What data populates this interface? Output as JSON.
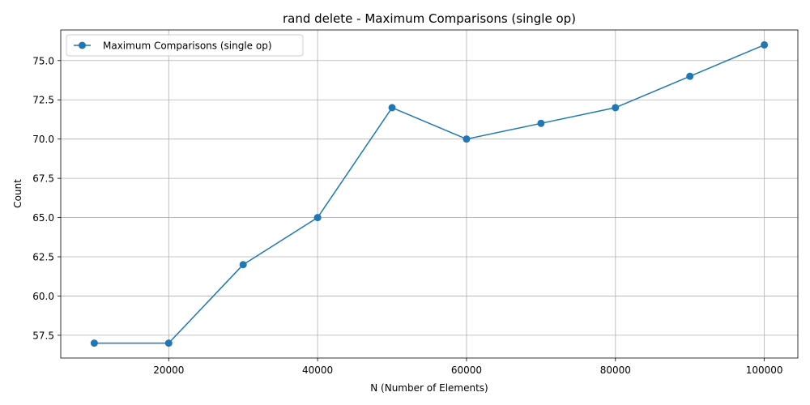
{
  "chart_data": {
    "type": "line",
    "title": "rand delete - Maximum Comparisons (single op)",
    "xlabel": "N (Number of Elements)",
    "ylabel": "Count",
    "xlim": [
      5500,
      104500
    ],
    "ylim": [
      56.05,
      76.95
    ],
    "xticks": [
      20000,
      40000,
      60000,
      80000,
      100000
    ],
    "xtick_labels": [
      "20000",
      "40000",
      "60000",
      "80000",
      "100000"
    ],
    "yticks": [
      57.5,
      60.0,
      62.5,
      65.0,
      67.5,
      70.0,
      72.5,
      75.0
    ],
    "ytick_labels": [
      "57.5",
      "60.0",
      "62.5",
      "65.0",
      "67.5",
      "70.0",
      "72.5",
      "75.0"
    ],
    "grid": true,
    "legend_position": "top-left",
    "series": [
      {
        "name": "Maximum Comparisons (single op)",
        "color": "#1f77b4",
        "marker": "circle",
        "x": [
          10000,
          20000,
          30000,
          40000,
          50000,
          60000,
          70000,
          80000,
          90000,
          100000
        ],
        "y": [
          57,
          57,
          62,
          65,
          72,
          70,
          71,
          72,
          74,
          76
        ]
      }
    ]
  }
}
